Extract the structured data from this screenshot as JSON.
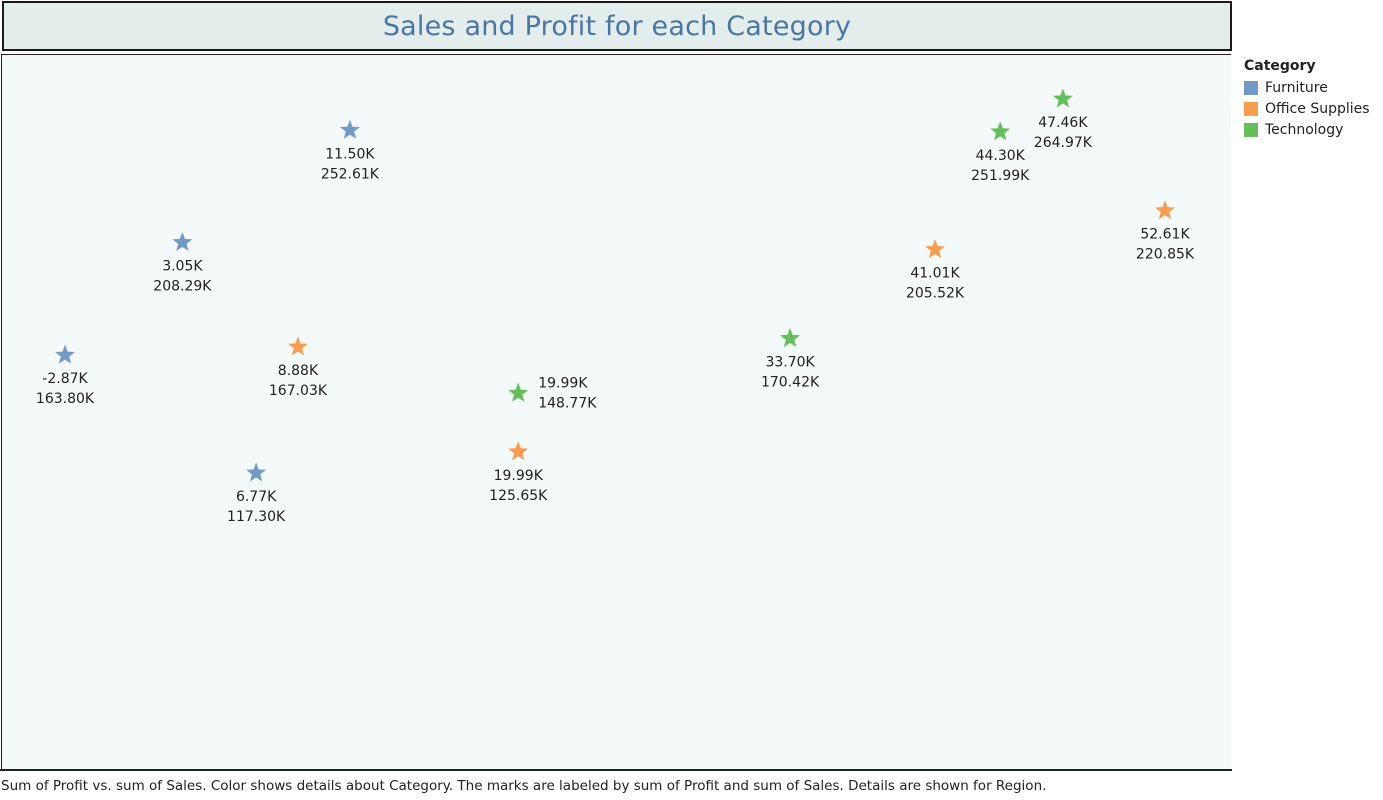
{
  "chart_data": {
    "type": "scatter",
    "title": "Sales and Profit for each Category",
    "marker": "star",
    "xlabel": "",
    "ylabel": "",
    "axes_visible": false,
    "grid": false,
    "legend": {
      "title": "Category",
      "placement": "right",
      "items": [
        {
          "name": "Furniture",
          "color": "#7399c6"
        },
        {
          "name": "Office Supplies",
          "color": "#f89d4d"
        },
        {
          "name": "Technology",
          "color": "#64be5b"
        }
      ]
    },
    "points": [
      {
        "category": "Furniture",
        "profit": -2870,
        "sales": 163800,
        "profit_label": "-2.87K",
        "sales_label": "163.80K"
      },
      {
        "category": "Furniture",
        "profit": 3050,
        "sales": 208290,
        "profit_label": "3.05K",
        "sales_label": "208.29K"
      },
      {
        "category": "Furniture",
        "profit": 11500,
        "sales": 252610,
        "profit_label": "11.50K",
        "sales_label": "252.61K"
      },
      {
        "category": "Furniture",
        "profit": 6770,
        "sales": 117300,
        "profit_label": "6.77K",
        "sales_label": "117.30K"
      },
      {
        "category": "Office Supplies",
        "profit": 8880,
        "sales": 167030,
        "profit_label": "8.88K",
        "sales_label": "167.03K"
      },
      {
        "category": "Office Supplies",
        "profit": 19990,
        "sales": 125650,
        "profit_label": "19.99K",
        "sales_label": "125.65K"
      },
      {
        "category": "Office Supplies",
        "profit": 41010,
        "sales": 205520,
        "profit_label": "41.01K",
        "sales_label": "205.52K"
      },
      {
        "category": "Office Supplies",
        "profit": 52610,
        "sales": 220850,
        "profit_label": "52.61K",
        "sales_label": "220.85K"
      },
      {
        "category": "Technology",
        "profit": 19990,
        "sales": 148770,
        "profit_label": "19.99K",
        "sales_label": "148.77K"
      },
      {
        "category": "Technology",
        "profit": 33700,
        "sales": 170420,
        "profit_label": "33.70K",
        "sales_label": "170.42K"
      },
      {
        "category": "Technology",
        "profit": 44300,
        "sales": 251990,
        "profit_label": "44.30K",
        "sales_label": "251.99K"
      },
      {
        "category": "Technology",
        "profit": 47460,
        "sales": 264970,
        "profit_label": "47.46K",
        "sales_label": "264.97K"
      }
    ],
    "caption": "Sum of Profit vs. sum of Sales.  Color shows details about Category.  The marks are labeled by sum of Profit and sum of Sales.  Details are shown for Region."
  }
}
